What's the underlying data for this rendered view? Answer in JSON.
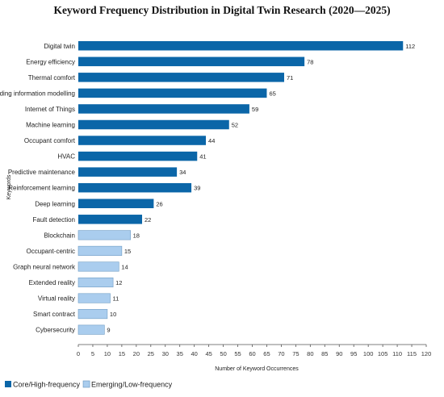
{
  "chart_data": {
    "type": "bar",
    "orientation": "horizontal",
    "title": "Keyword Frequency Distribution in Digital Twin Research (2020—2025)",
    "xlabel": "Number of Keyword Occurrences",
    "ylabel": "Keywords",
    "xlim": [
      0,
      120
    ],
    "xticks": [
      0,
      5,
      10,
      15,
      20,
      25,
      30,
      35,
      40,
      45,
      50,
      55,
      60,
      65,
      70,
      75,
      80,
      85,
      90,
      95,
      100,
      105,
      110,
      115,
      120
    ],
    "grid": false,
    "legend_position": "bottom-left",
    "colors": {
      "core": "#0b66a8",
      "emerging": "#aacdee",
      "emerging_border": "#6f9cc4",
      "axis": "#555555"
    },
    "series": [
      {
        "name": "Core/High-frequency",
        "color_key": "core"
      },
      {
        "name": "Emerging/Low-frequency",
        "color_key": "emerging"
      }
    ],
    "bars": [
      {
        "category": "Digital twin",
        "value": 112,
        "group": "core"
      },
      {
        "category": "Energy efficiency",
        "value": 78,
        "group": "core"
      },
      {
        "category": "Thermal comfort",
        "value": 71,
        "group": "core"
      },
      {
        "category": "Building information modelling",
        "value": 65,
        "group": "core"
      },
      {
        "category": "Internet of Things",
        "value": 59,
        "group": "core"
      },
      {
        "category": "Machine learning",
        "value": 52,
        "group": "core"
      },
      {
        "category": "Occupant comfort",
        "value": 44,
        "group": "core"
      },
      {
        "category": "HVAC",
        "value": 41,
        "group": "core"
      },
      {
        "category": "Predictive maintenance",
        "value": 34,
        "group": "core"
      },
      {
        "category": "Reinforcement learning",
        "value": 39,
        "group": "core"
      },
      {
        "category": "Deep learning",
        "value": 26,
        "group": "core"
      },
      {
        "category": "Fault detection",
        "value": 22,
        "group": "core"
      },
      {
        "category": "Blockchain",
        "value": 18,
        "group": "emerging"
      },
      {
        "category": "Occupant-centric",
        "value": 15,
        "group": "emerging"
      },
      {
        "category": "Graph neural network",
        "value": 14,
        "group": "emerging"
      },
      {
        "category": "Extended reality",
        "value": 12,
        "group": "emerging"
      },
      {
        "category": "Virtual reality",
        "value": 11,
        "group": "emerging"
      },
      {
        "category": "Smart contract",
        "value": 10,
        "group": "emerging"
      },
      {
        "category": "Cybersecurity",
        "value": 9,
        "group": "emerging"
      }
    ]
  }
}
